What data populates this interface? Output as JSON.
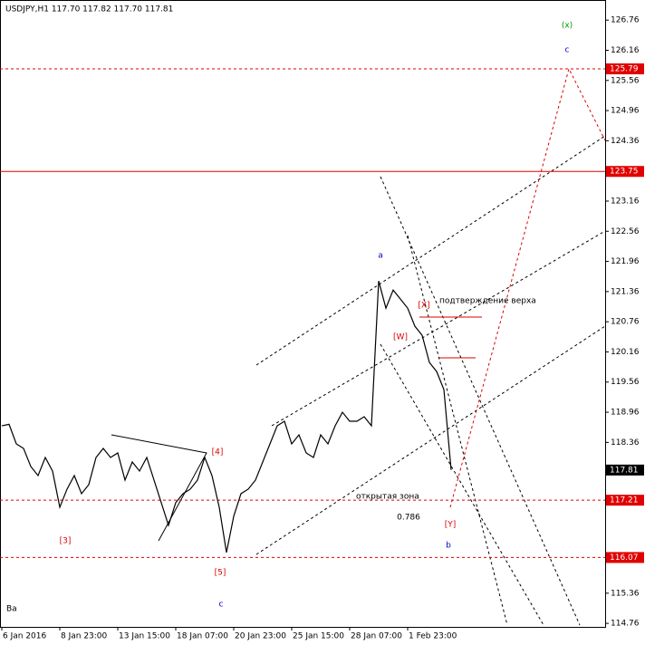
{
  "chart_data": {
    "type": "line",
    "title": "USDJPY,H1  117.70 117.82 117.70 117.81",
    "categories": [
      "6 Jan 2016",
      null,
      null,
      null,
      null,
      null,
      null,
      null,
      "8 Jan 23:00",
      null,
      null,
      null,
      null,
      null,
      null,
      null,
      "13 Jan 15:00",
      null,
      null,
      null,
      null,
      null,
      null,
      null,
      "18 Jan 07:00",
      null,
      null,
      null,
      null,
      null,
      null,
      null,
      "20 Jan 23:00",
      null,
      null,
      null,
      null,
      null,
      null,
      null,
      "25 Jan 15:00",
      null,
      null,
      null,
      null,
      null,
      null,
      null,
      "28 Jan 07:00",
      null,
      null,
      null,
      null,
      null,
      null,
      null,
      "1 Feb 23:00",
      null,
      null,
      null,
      null,
      null,
      null
    ],
    "series": [
      {
        "color": "#000000",
        "values": [
          118.69,
          118.72,
          118.33,
          118.24,
          117.88,
          117.7,
          118.06,
          117.79,
          117.07,
          117.43,
          117.7,
          117.34,
          117.52,
          118.06,
          118.24,
          118.06,
          118.15,
          117.61,
          117.97,
          117.79,
          118.06,
          117.61,
          117.16,
          116.71,
          117.16,
          117.34,
          117.43,
          117.61,
          118.06,
          117.7,
          117.07,
          116.17,
          116.89,
          117.34,
          117.43,
          117.61,
          117.97,
          118.33,
          118.69,
          118.78,
          118.33,
          118.51,
          118.15,
          118.06,
          118.51,
          118.33,
          118.69,
          118.96,
          118.78,
          118.78,
          118.87,
          118.69,
          121.57,
          121.03,
          121.39,
          121.21,
          121.03,
          120.67,
          120.49,
          119.95,
          119.77,
          119.41,
          117.81
        ]
      }
    ],
    "ylim": [
      114.69,
      127.16
    ],
    "yticks": [
      126.76,
      126.16,
      125.56,
      124.96,
      124.36,
      123.16,
      122.56,
      121.96,
      121.36,
      120.76,
      120.16,
      119.56,
      118.96,
      118.36,
      115.36,
      114.76
    ],
    "levels": [
      {
        "value": 125.79,
        "color": "#e00000"
      },
      {
        "value": 123.75,
        "color": "#e00000"
      },
      {
        "value": 117.21,
        "color": "#e00000"
      },
      {
        "value": 116.07,
        "color": "#e00000"
      },
      {
        "value": 117.81,
        "color": "#000000"
      }
    ],
    "annotations": [
      {
        "text": "(x)",
        "color": "#009900"
      },
      {
        "text": "c",
        "color": "#0000cc"
      },
      {
        "text": "a",
        "color": "#0000cc"
      },
      {
        "text": "[X]",
        "color": "#e00000"
      },
      {
        "text": "подтверждение верха",
        "color": "#000000"
      },
      {
        "text": "[W]",
        "color": "#e00000"
      },
      {
        "text": "[4]",
        "color": "#e00000"
      },
      {
        "text": "[3]",
        "color": "#e00000"
      },
      {
        "text": "[5]",
        "color": "#e00000"
      },
      {
        "text": "c",
        "color": "#0000cc"
      },
      {
        "text": "открытая зона",
        "color": "#000000"
      },
      {
        "text": "0.786",
        "color": "#000000"
      },
      {
        "text": "[Y]",
        "color": "#e00000"
      },
      {
        "text": "b",
        "color": "#0000cc"
      },
      {
        "text": "Ba",
        "color": "#000000"
      }
    ]
  }
}
